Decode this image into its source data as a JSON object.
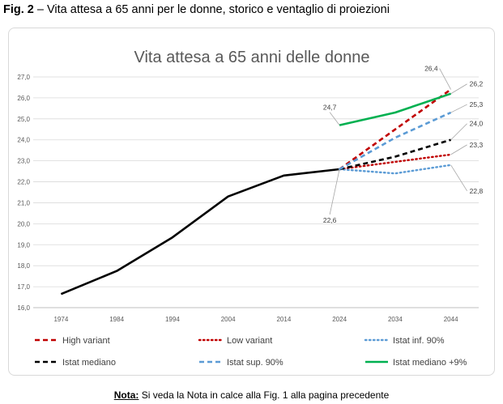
{
  "caption": {
    "figure_number": "Fig. 2",
    "text": " – Vita attesa a 65 anni per le donne, storico e ventaglio di proiezioni"
  },
  "note": {
    "label": "Nota:",
    "text": " Si veda la Nota in calce alla Fig. 1 alla pagina precedente"
  },
  "chart_data": {
    "type": "line",
    "title": "Vita attesa a 65 anni delle donne",
    "xlabel": "",
    "ylabel": "",
    "ylim": [
      16.0,
      27.0
    ],
    "y_ticks": [
      "16,0",
      "17,0",
      "18,0",
      "19,0",
      "20,0",
      "21,0",
      "22,0",
      "23,0",
      "24,0",
      "25,0",
      "26,0",
      "27,0"
    ],
    "x_ticks": [
      "1974",
      "1984",
      "1994",
      "2004",
      "2014",
      "2024",
      "2034",
      "2044"
    ],
    "xlim": [
      1969,
      2049
    ],
    "grid": true,
    "legend_position": "bottom",
    "series": [
      {
        "name": "Istat mediano",
        "key": "historic",
        "color": "#000000",
        "style": "solid",
        "show_legend": false,
        "x": [
          1974,
          1984,
          1994,
          2004,
          2014,
          2024
        ],
        "y": [
          16.65,
          17.75,
          19.35,
          21.3,
          22.3,
          22.6
        ]
      },
      {
        "name": "High variant",
        "key": "high",
        "color": "#c00000",
        "style": "dash",
        "x": [
          2024,
          2034,
          2044
        ],
        "y": [
          22.6,
          24.5,
          26.4
        ]
      },
      {
        "name": "Low variant",
        "key": "low",
        "color": "#c00000",
        "style": "dot",
        "x": [
          2024,
          2034,
          2044
        ],
        "y": [
          22.6,
          22.95,
          23.3
        ]
      },
      {
        "name": "Istat inf. 90%",
        "key": "inf90",
        "color": "#5b9bd5",
        "style": "dot",
        "x": [
          2024,
          2034,
          2044
        ],
        "y": [
          22.6,
          22.4,
          22.8
        ]
      },
      {
        "name": "Istat mediano",
        "key": "median",
        "color": "#000000",
        "style": "dash",
        "x": [
          2024,
          2034,
          2044
        ],
        "y": [
          22.6,
          23.2,
          24.0
        ]
      },
      {
        "name": "Istat sup. 90%",
        "key": "sup90",
        "color": "#5b9bd5",
        "style": "dash",
        "x": [
          2024,
          2034,
          2044
        ],
        "y": [
          22.6,
          24.1,
          25.3
        ]
      },
      {
        "name": "Istat mediano +9%",
        "key": "median9",
        "color": "#00b050",
        "style": "solid",
        "x": [
          2024,
          2034,
          2044
        ],
        "y": [
          24.7,
          25.3,
          26.2
        ]
      }
    ],
    "legend": [
      {
        "series": "high",
        "label": "High variant"
      },
      {
        "series": "low",
        "label": "Low variant"
      },
      {
        "series": "inf90",
        "label": "Istat inf. 90%"
      },
      {
        "series": "median",
        "label": "Istat mediano"
      },
      {
        "series": "sup90",
        "label": "Istat sup. 90%"
      },
      {
        "series": "median9",
        "label": "Istat mediano +9%"
      }
    ],
    "annotations": [
      {
        "text": "26,4",
        "x": 2044,
        "y": 26.4
      },
      {
        "text": "26,2",
        "x": 2044,
        "y": 26.2
      },
      {
        "text": "25,3",
        "x": 2044,
        "y": 25.3
      },
      {
        "text": "24,0",
        "x": 2044,
        "y": 24.0
      },
      {
        "text": "23,3",
        "x": 2044,
        "y": 23.3
      },
      {
        "text": "22,8",
        "x": 2044,
        "y": 22.8
      },
      {
        "text": "24,7",
        "x": 2024,
        "y": 24.7
      },
      {
        "text": "22,6",
        "x": 2024,
        "y": 22.6
      }
    ]
  }
}
